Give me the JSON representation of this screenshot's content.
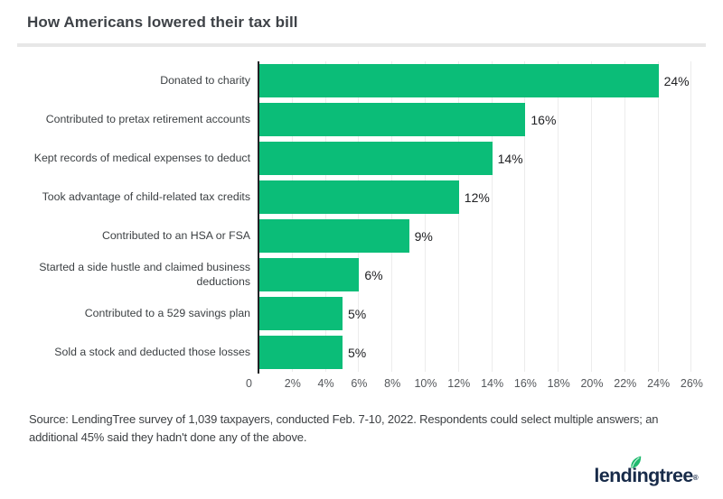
{
  "title": "How Americans lowered their tax bill",
  "chart_data": {
    "type": "bar",
    "orientation": "horizontal",
    "categories": [
      "Donated to charity",
      "Contributed to pretax retirement accounts",
      "Kept records of medical expenses to deduct",
      "Took advantage of child-related tax credits",
      "Contributed to an HSA or FSA",
      [
        "Started a side hustle and claimed business",
        "deductions"
      ],
      "Contributed to a 529 savings plan",
      "Sold a stock and deducted those losses"
    ],
    "values": [
      24,
      16,
      14,
      12,
      9,
      6,
      5,
      5
    ],
    "value_labels": [
      "24%",
      "16%",
      "14%",
      "12%",
      "9%",
      "6%",
      "5%",
      "5%"
    ],
    "x_ticks": [
      "0",
      "2%",
      "4%",
      "6%",
      "8%",
      "10%",
      "12%",
      "14%",
      "16%",
      "18%",
      "20%",
      "22%",
      "24%",
      "26%"
    ],
    "x_tick_values": [
      0,
      2,
      4,
      6,
      8,
      10,
      12,
      14,
      16,
      18,
      20,
      22,
      24,
      26
    ],
    "xlim": [
      0,
      26.7
    ],
    "grid": "vertical-light-gray-every-2pct",
    "legend": "none",
    "bar_color": "#0bbd78"
  },
  "source_note": "Source: LendingTree survey of 1,039 taxpayers, conducted Feb. 7-10, 2022. Respondents could select multiple answers; an additional 45% said they hadn't done any of the above.",
  "logo": {
    "text": "lendingtree",
    "registered_mark": "®",
    "text_color": "#182b49",
    "leaf_color": "#1fba6e"
  },
  "colors": {
    "bar_green": "#0bbd78",
    "axis_line": "#1f2124",
    "gridline": "#ececec",
    "divider": "#e7e7e7",
    "title_text": "#3e4247",
    "category_text": "#3c4043",
    "tick_text": "#55585c",
    "value_text": "#202124"
  }
}
